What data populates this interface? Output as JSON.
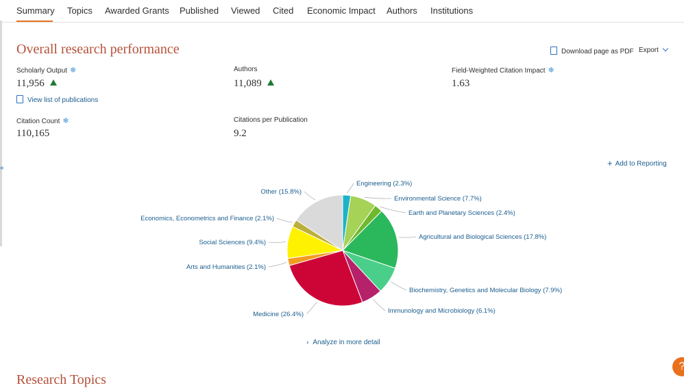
{
  "tabs": [
    {
      "label": "Summary"
    },
    {
      "label": "Topics"
    },
    {
      "label": "Awarded Grants"
    },
    {
      "label": "Published"
    },
    {
      "label": "Viewed"
    },
    {
      "label": "Cited"
    },
    {
      "label": "Economic Impact"
    },
    {
      "label": "Authors"
    },
    {
      "label": "Institutions"
    }
  ],
  "section": {
    "title": "Overall research performance",
    "download_label": "Download page as PDF",
    "export_label": "Export"
  },
  "metrics": {
    "scholarly_output": {
      "label": "Scholarly Output",
      "value": "11,956"
    },
    "authors": {
      "label": "Authors",
      "value": "11,089"
    },
    "fwci": {
      "label": "Field-Weighted Citation Impact",
      "value": "1.63"
    },
    "citation_count": {
      "label": "Citation Count",
      "value": "110,165"
    },
    "citations_per_pub": {
      "label": "Citations per Publication",
      "value": "9.2"
    },
    "view_list_label": "View list of publications"
  },
  "add_to_reporting": "Add to Reporting",
  "analyze_label": "Analyze in more detail",
  "bottom_title": "Research Topics",
  "colors": {
    "accent": "#e9711c",
    "title": "#b5503a",
    "link": "#1a5d8f",
    "up": "#1e7b34"
  },
  "chart_data": {
    "type": "pie",
    "slices": [
      {
        "label": "Engineering (2.3%)",
        "value": 2.3,
        "color": "#1bb3c8"
      },
      {
        "label": "Environmental Science (7.7%)",
        "value": 7.7,
        "color": "#a5d257"
      },
      {
        "label": "Earth and Planetary Sciences (2.4%)",
        "value": 2.4,
        "color": "#6fb82d"
      },
      {
        "label": "Agricultural and Biological Sciences (17.8%)",
        "value": 17.8,
        "color": "#2bb85c"
      },
      {
        "label": "Biochemistry, Genetics and Molecular Biology (7.9%)",
        "value": 7.9,
        "color": "#49cf89"
      },
      {
        "label": "Immunology and Microbiology (6.1%)",
        "value": 6.1,
        "color": "#b5226a"
      },
      {
        "label": "Medicine (26.4%)",
        "value": 26.4,
        "color": "#cd0537"
      },
      {
        "label": "Arts and Humanities (2.1%)",
        "value": 2.1,
        "color": "#f39c1f"
      },
      {
        "label": "Social Sciences (9.4%)",
        "value": 9.4,
        "color": "#fff200"
      },
      {
        "label": "Economics, Econometrics and Finance (2.1%)",
        "value": 2.1,
        "color": "#bcaf3a"
      },
      {
        "label": "Other (15.8%)",
        "value": 15.8,
        "color": "#dadada"
      }
    ]
  }
}
